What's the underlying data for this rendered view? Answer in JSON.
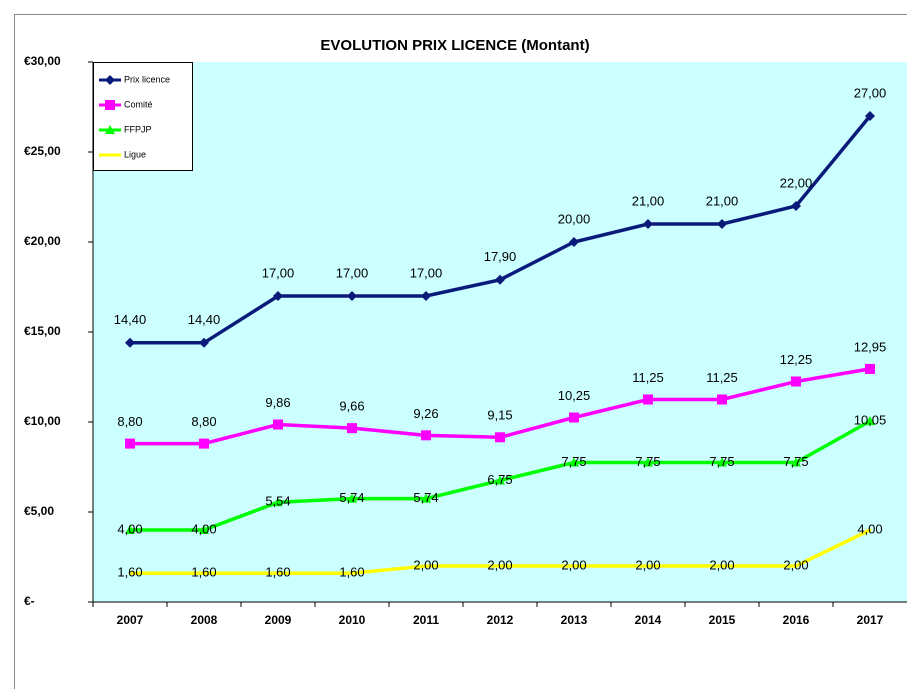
{
  "chart_data": {
    "type": "line",
    "title": "EVOLUTION PRIX LICENCE (Montant)",
    "categories": [
      "2007",
      "2008",
      "2009",
      "2010",
      "2011",
      "2012",
      "2013",
      "2014",
      "2015",
      "2016",
      "2017"
    ],
    "series": [
      {
        "name": "Prix licence",
        "color": "#0a1a7a",
        "marker": "diamond",
        "values": [
          14.4,
          14.4,
          17,
          17,
          17,
          17.9,
          20,
          21,
          21,
          22,
          27
        ],
        "value_labels": [
          "14,40",
          "14,40",
          "17,00",
          "17,00",
          "17,00",
          "17,90",
          "20,00",
          "21,00",
          "21,00",
          "22,00",
          "27,00"
        ]
      },
      {
        "name": "Comité",
        "color": "#ff00ff",
        "marker": "square",
        "values": [
          8.8,
          8.8,
          9.86,
          9.66,
          9.26,
          9.15,
          10.25,
          11.25,
          11.25,
          12.25,
          12.95
        ],
        "value_labels": [
          "8,80",
          "8,80",
          "9,86",
          "9,66",
          "9,26",
          "9,15",
          "10,25",
          "11,25",
          "11,25",
          "12,25",
          "12,95"
        ]
      },
      {
        "name": "FFPJP",
        "color": "#00ff00",
        "marker": "triangle",
        "values": [
          4,
          4,
          5.54,
          5.74,
          5.74,
          6.75,
          7.75,
          7.75,
          7.75,
          7.75,
          10.05
        ],
        "value_labels": [
          "4,00",
          "4,00",
          "5,54",
          "5,74",
          "5,74",
          "6,75",
          "7,75",
          "7,75",
          "7,75",
          "7,75",
          "10,05"
        ]
      },
      {
        "name": "Ligue",
        "color": "#ffff00",
        "marker": "none",
        "values": [
          1.6,
          1.6,
          1.6,
          1.6,
          2,
          2,
          2,
          2,
          2,
          2,
          4
        ],
        "value_labels": [
          "1,60",
          "1,60",
          "1,60",
          "1,60",
          "2,00",
          "2,00",
          "2,00",
          "2,00",
          "2,00",
          "2,00",
          "4,00"
        ]
      }
    ],
    "ylim": [
      0,
      30
    ],
    "yticks": [
      {
        "value": 0,
        "label": "€-"
      },
      {
        "value": 5,
        "label": "€5,00"
      },
      {
        "value": 10,
        "label": "€10,00"
      },
      {
        "value": 15,
        "label": "€15,00"
      },
      {
        "value": 20,
        "label": "€20,00"
      },
      {
        "value": 25,
        "label": "€25,00"
      },
      {
        "value": 30,
        "label": "€30,00"
      }
    ],
    "grid": false,
    "legend": "top-left",
    "background": "#ccffff"
  }
}
